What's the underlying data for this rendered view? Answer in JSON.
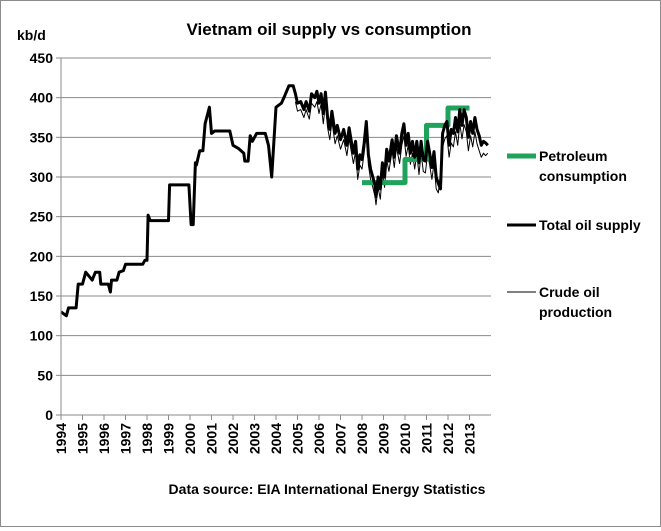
{
  "chart_data": {
    "type": "line",
    "title": "Vietnam oil supply vs consumption",
    "ylabel": "kb/d",
    "xlabel": "",
    "source": "Data source: EIA International Energy Statistics",
    "ylim": [
      0,
      450
    ],
    "xlim": [
      1994,
      2014
    ],
    "yticks": [
      "0",
      "50",
      "100",
      "150",
      "200",
      "250",
      "300",
      "350",
      "400",
      "450"
    ],
    "xticks": [
      "1994",
      "1995",
      "1996",
      "1997",
      "1998",
      "1999",
      "2000",
      "2001",
      "2002",
      "2003",
      "2004",
      "2005",
      "2006",
      "2007",
      "2008",
      "2009",
      "2010",
      "2011",
      "2012",
      "2013"
    ],
    "grid": "horizontal",
    "legend_position": "right",
    "series": [
      {
        "name": "Petroleum consumption",
        "color": "#1fa35b",
        "points": [
          [
            2008.0,
            293
          ],
          [
            2010.0,
            293
          ],
          [
            2010.0,
            322
          ],
          [
            2011.0,
            322
          ],
          [
            2011.0,
            365
          ],
          [
            2012.0,
            365
          ],
          [
            2012.0,
            387
          ],
          [
            2013.0,
            387
          ]
        ]
      },
      {
        "name": "Total oil supply",
        "color": "#000000",
        "points": [
          [
            1994.0,
            130
          ],
          [
            1994.25,
            125
          ],
          [
            1994.35,
            135
          ],
          [
            1994.7,
            135
          ],
          [
            1994.8,
            165
          ],
          [
            1995.0,
            165
          ],
          [
            1995.15,
            180
          ],
          [
            1995.45,
            170
          ],
          [
            1995.6,
            180
          ],
          [
            1995.8,
            180
          ],
          [
            1995.85,
            165
          ],
          [
            1996.2,
            165
          ],
          [
            1996.3,
            155
          ],
          [
            1996.35,
            170
          ],
          [
            1996.6,
            170
          ],
          [
            1996.7,
            180
          ],
          [
            1996.9,
            182
          ],
          [
            1997.0,
            190
          ],
          [
            1997.8,
            190
          ],
          [
            1997.9,
            195
          ],
          [
            1998.0,
            195
          ],
          [
            1998.05,
            252
          ],
          [
            1998.15,
            245
          ],
          [
            1999.0,
            245
          ],
          [
            1999.05,
            290
          ],
          [
            1999.95,
            290
          ],
          [
            2000.05,
            240
          ],
          [
            2000.15,
            240
          ],
          [
            2000.25,
            318
          ],
          [
            2000.3,
            315
          ],
          [
            2000.45,
            333
          ],
          [
            2000.6,
            333
          ],
          [
            2000.7,
            367
          ],
          [
            2000.9,
            388
          ],
          [
            2001.0,
            355
          ],
          [
            2001.15,
            358
          ],
          [
            2001.85,
            358
          ],
          [
            2002.0,
            340
          ],
          [
            2002.25,
            336
          ],
          [
            2002.5,
            330
          ],
          [
            2002.55,
            320
          ],
          [
            2002.7,
            320
          ],
          [
            2002.8,
            352
          ],
          [
            2002.9,
            345
          ],
          [
            2003.1,
            355
          ],
          [
            2003.5,
            355
          ],
          [
            2003.65,
            340
          ],
          [
            2003.8,
            300
          ],
          [
            2004.0,
            388
          ],
          [
            2004.25,
            393
          ],
          [
            2004.4,
            402
          ],
          [
            2004.6,
            415
          ],
          [
            2004.8,
            415
          ],
          [
            2004.9,
            405
          ],
          [
            2005.0,
            393
          ],
          [
            2005.15,
            395
          ],
          [
            2005.3,
            385
          ],
          [
            2005.4,
            395
          ],
          [
            2005.55,
            383
          ],
          [
            2005.65,
            405
          ],
          [
            2005.8,
            400
          ],
          [
            2005.9,
            408
          ],
          [
            2006.0,
            393
          ],
          [
            2006.1,
            405
          ],
          [
            2006.2,
            380
          ],
          [
            2006.3,
            407
          ],
          [
            2006.4,
            375
          ],
          [
            2006.5,
            360
          ],
          [
            2006.6,
            383
          ],
          [
            2006.75,
            355
          ],
          [
            2006.85,
            365
          ],
          [
            2007.0,
            347
          ],
          [
            2007.15,
            360
          ],
          [
            2007.3,
            340
          ],
          [
            2007.4,
            362
          ],
          [
            2007.5,
            345
          ],
          [
            2007.6,
            330
          ],
          [
            2007.7,
            345
          ],
          [
            2007.8,
            310
          ],
          [
            2007.9,
            328
          ],
          [
            2008.0,
            322
          ],
          [
            2008.1,
            342
          ],
          [
            2008.2,
            370
          ],
          [
            2008.3,
            328
          ],
          [
            2008.4,
            310
          ],
          [
            2008.5,
            300
          ],
          [
            2008.6,
            290
          ],
          [
            2008.65,
            275
          ],
          [
            2008.75,
            300
          ],
          [
            2008.85,
            285
          ],
          [
            2008.95,
            318
          ],
          [
            2009.05,
            300
          ],
          [
            2009.15,
            335
          ],
          [
            2009.25,
            320
          ],
          [
            2009.4,
            347
          ],
          [
            2009.5,
            325
          ],
          [
            2009.6,
            352
          ],
          [
            2009.75,
            330
          ],
          [
            2009.85,
            355
          ],
          [
            2009.95,
            367
          ],
          [
            2010.05,
            340
          ],
          [
            2010.15,
            355
          ],
          [
            2010.25,
            330
          ],
          [
            2010.35,
            345
          ],
          [
            2010.45,
            325
          ],
          [
            2010.55,
            345
          ],
          [
            2010.65,
            318
          ],
          [
            2010.75,
            345
          ],
          [
            2010.85,
            322
          ],
          [
            2010.95,
            320
          ],
          [
            2011.05,
            345
          ],
          [
            2011.15,
            330
          ],
          [
            2011.25,
            312
          ],
          [
            2011.35,
            332
          ],
          [
            2011.45,
            300
          ],
          [
            2011.55,
            292
          ],
          [
            2011.65,
            285
          ],
          [
            2011.75,
            355
          ],
          [
            2011.85,
            365
          ],
          [
            2011.95,
            370
          ],
          [
            2012.05,
            340
          ],
          [
            2012.15,
            360
          ],
          [
            2012.25,
            355
          ],
          [
            2012.35,
            375
          ],
          [
            2012.45,
            357
          ],
          [
            2012.55,
            385
          ],
          [
            2012.65,
            365
          ],
          [
            2012.75,
            385
          ],
          [
            2012.85,
            375
          ],
          [
            2012.95,
            350
          ],
          [
            2013.05,
            370
          ],
          [
            2013.15,
            355
          ],
          [
            2013.25,
            375
          ],
          [
            2013.35,
            360
          ],
          [
            2013.45,
            352
          ],
          [
            2013.55,
            340
          ],
          [
            2013.65,
            345
          ],
          [
            2013.75,
            343
          ],
          [
            2013.85,
            340
          ]
        ]
      },
      {
        "name": "Crude oil production",
        "color": "#000000",
        "points": [
          [
            2004.9,
            395
          ],
          [
            2005.0,
            383
          ],
          [
            2005.15,
            385
          ],
          [
            2005.3,
            375
          ],
          [
            2005.4,
            385
          ],
          [
            2005.55,
            373
          ],
          [
            2005.65,
            393
          ],
          [
            2005.8,
            388
          ],
          [
            2005.9,
            395
          ],
          [
            2006.0,
            380
          ],
          [
            2006.1,
            392
          ],
          [
            2006.2,
            367
          ],
          [
            2006.3,
            392
          ],
          [
            2006.4,
            362
          ],
          [
            2006.5,
            347
          ],
          [
            2006.6,
            370
          ],
          [
            2006.75,
            342
          ],
          [
            2006.85,
            352
          ],
          [
            2007.0,
            335
          ],
          [
            2007.15,
            347
          ],
          [
            2007.3,
            327
          ],
          [
            2007.4,
            348
          ],
          [
            2007.5,
            332
          ],
          [
            2007.6,
            317
          ],
          [
            2007.7,
            332
          ],
          [
            2007.8,
            297
          ],
          [
            2007.9,
            315
          ],
          [
            2008.0,
            310
          ],
          [
            2008.1,
            330
          ],
          [
            2008.2,
            355
          ],
          [
            2008.3,
            315
          ],
          [
            2008.4,
            297
          ],
          [
            2008.5,
            287
          ],
          [
            2008.6,
            276
          ],
          [
            2008.65,
            265
          ],
          [
            2008.75,
            287
          ],
          [
            2008.85,
            272
          ],
          [
            2008.95,
            305
          ],
          [
            2009.05,
            287
          ],
          [
            2009.15,
            322
          ],
          [
            2009.25,
            307
          ],
          [
            2009.4,
            333
          ],
          [
            2009.5,
            312
          ],
          [
            2009.6,
            338
          ],
          [
            2009.75,
            317
          ],
          [
            2009.85,
            340
          ],
          [
            2009.95,
            352
          ],
          [
            2010.05,
            326
          ],
          [
            2010.15,
            340
          ],
          [
            2010.25,
            316
          ],
          [
            2010.35,
            330
          ],
          [
            2010.45,
            310
          ],
          [
            2010.55,
            330
          ],
          [
            2010.65,
            303
          ],
          [
            2010.75,
            330
          ],
          [
            2010.85,
            307
          ],
          [
            2010.95,
            305
          ],
          [
            2011.05,
            330
          ],
          [
            2011.15,
            315
          ],
          [
            2011.25,
            297
          ],
          [
            2011.35,
            317
          ],
          [
            2011.45,
            285
          ],
          [
            2011.55,
            280
          ],
          [
            2011.65,
            305
          ],
          [
            2011.75,
            338
          ],
          [
            2011.85,
            348
          ],
          [
            2011.95,
            352
          ],
          [
            2012.05,
            325
          ],
          [
            2012.15,
            343
          ],
          [
            2012.25,
            338
          ],
          [
            2012.35,
            357
          ],
          [
            2012.45,
            340
          ],
          [
            2012.55,
            367
          ],
          [
            2012.65,
            348
          ],
          [
            2012.75,
            366
          ],
          [
            2012.85,
            357
          ],
          [
            2012.95,
            333
          ],
          [
            2013.05,
            352
          ],
          [
            2013.15,
            338
          ],
          [
            2013.25,
            357
          ],
          [
            2013.35,
            342
          ],
          [
            2013.45,
            333
          ],
          [
            2013.55,
            325
          ],
          [
            2013.65,
            330
          ],
          [
            2013.75,
            327
          ],
          [
            2013.85,
            330
          ]
        ]
      }
    ],
    "legend": [
      {
        "line1": "Petroleum",
        "line2": "consumption",
        "series": 0
      },
      {
        "line1": "Total oil supply",
        "line2": "",
        "series": 1
      },
      {
        "line1": "Crude oil",
        "line2": "production",
        "series": 2
      }
    ]
  }
}
